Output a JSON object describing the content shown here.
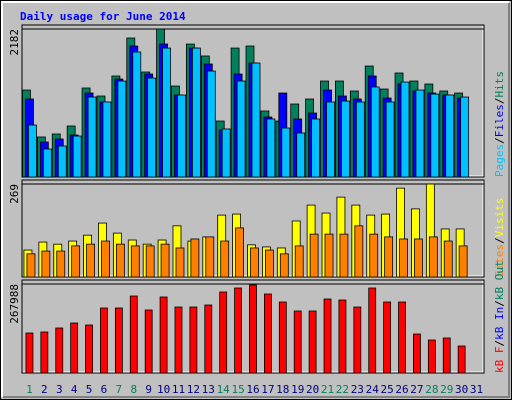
{
  "chart_data": [
    {
      "type": "bar",
      "title": "Daily usage for June 2014",
      "ylim": [
        0,
        2182
      ],
      "yticks": [
        2182
      ],
      "legend_separator": "/",
      "series": [
        {
          "name": "Hits",
          "color": "#00805c",
          "values": [
            1282,
            590,
            634,
            752,
            1312,
            1194,
            1489,
            2049,
            1548,
            2182,
            1341,
            1960,
            1784,
            825,
            1901,
            1931,
            973,
            825,
            1076,
            1150,
            1415,
            1415,
            1268,
            1636,
            1297,
            1533,
            1415,
            1371,
            1268,
            1238,
            null
          ]
        },
        {
          "name": "Files",
          "color": "#0000ff",
          "values": [
            1150,
            516,
            560,
            619,
            1238,
            1106,
            1444,
            1931,
            1518,
            1960,
            1209,
            1901,
            1666,
            693,
            1518,
            1680,
            884,
            1238,
            855,
            943,
            1282,
            1194,
            1150,
            1489,
            1164,
            1371,
            1268,
            1238,
            1209,
            1164,
            null
          ]
        },
        {
          "name": "Pages",
          "color": "#00c0ff",
          "values": [
            766,
            413,
            457,
            604,
            1179,
            1106,
            1415,
            1843,
            1459,
            1901,
            1209,
            1901,
            1562,
            708,
            1415,
            1680,
            855,
            722,
            649,
            855,
            1106,
            1120,
            1106,
            1327,
            1106,
            1400,
            1282,
            1223,
            1209,
            1179,
            null
          ]
        }
      ]
    },
    {
      "type": "bar",
      "ylim": [
        0,
        269
      ],
      "yticks": [
        269
      ],
      "legend_separator": "/",
      "series": [
        {
          "name": "Visits",
          "color": "#ffff00",
          "values": [
            78,
            101,
            95,
            104,
            121,
            156,
            127,
            107,
            95,
            107,
            148,
            104,
            116,
            179,
            182,
            93,
            87,
            84,
            162,
            208,
            185,
            231,
            208,
            179,
            182,
            257,
            197,
            269,
            139,
            139,
            null
          ]
        },
        {
          "name": "Sites",
          "color": "#ff8000",
          "values": [
            67,
            75,
            75,
            90,
            95,
            104,
            95,
            90,
            90,
            95,
            84,
            110,
            116,
            104,
            142,
            84,
            78,
            67,
            90,
            124,
            124,
            124,
            148,
            124,
            116,
            110,
            110,
            116,
            104,
            90,
            null
          ]
        }
      ]
    },
    {
      "type": "bar",
      "ylim": [
        0,
        267988
      ],
      "yticks": [
        267988
      ],
      "legend_separator": "/",
      "categories": [
        "1",
        "2",
        "3",
        "4",
        "5",
        "6",
        "7",
        "8",
        "9",
        "10",
        "11",
        "12",
        "13",
        "14",
        "15",
        "16",
        "17",
        "18",
        "19",
        "20",
        "21",
        "22",
        "23",
        "24",
        "25",
        "26",
        "27",
        "28",
        "29",
        "30",
        "31"
      ],
      "category_colors": [
        "#00805c",
        "#000080",
        "#000080",
        "#000080",
        "#000080",
        "#000080",
        "#00805c",
        "#00805c",
        "#000080",
        "#000080",
        "#000080",
        "#000080",
        "#000080",
        "#00805c",
        "#00805c",
        "#000080",
        "#000080",
        "#000080",
        "#000080",
        "#000080",
        "#00805c",
        "#00805c",
        "#000080",
        "#000080",
        "#000080",
        "#000080",
        "#000080",
        "#00805c",
        "#00805c",
        "#000080",
        "#000080"
      ],
      "series": [
        {
          "name": "kB F",
          "color": "#ff0000",
          "values": [
            120440,
            123450,
            135500,
            150550,
            144530,
            195700,
            195700,
            231850,
            189700,
            228840,
            198700,
            198700,
            204750,
            243900,
            255940,
            264970,
            237870,
            213780,
            186700,
            186700,
            222800,
            219800,
            198700,
            255940,
            213780,
            213780,
            117430,
            99360,
            105390,
            81300,
            null
          ]
        }
      ],
      "extra_legend": [
        {
          "name": "kB In",
          "color": "#0000ff"
        },
        {
          "name": "kB Out",
          "color": "#00805c"
        }
      ]
    }
  ]
}
